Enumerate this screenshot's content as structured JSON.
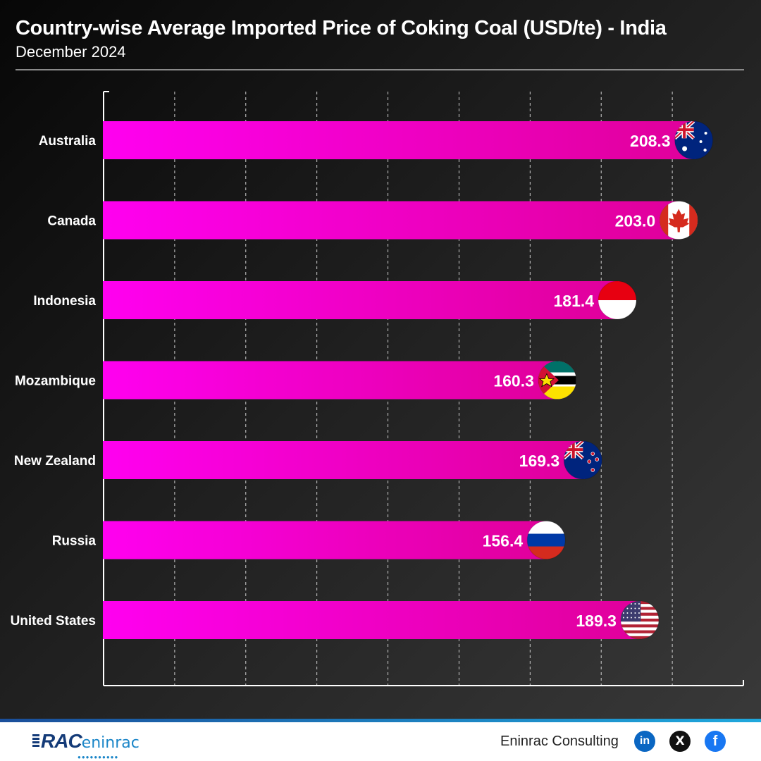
{
  "chart_data": {
    "type": "bar",
    "orientation": "horizontal",
    "title": "Country-wise Average Imported Price of Coking Coal (USD/te) - India",
    "subtitle": "December 2024",
    "categories": [
      "Australia",
      "Canada",
      "Indonesia",
      "Mozambique",
      "New Zealand",
      "Russia",
      "United States"
    ],
    "values": [
      208.3,
      203.0,
      181.4,
      160.3,
      169.3,
      156.4,
      189.3
    ],
    "value_labels": [
      "208.3",
      "203.0",
      "181.4",
      "160.3",
      "169.3",
      "156.4",
      "189.3"
    ],
    "flags": [
      "australia-flag-icon",
      "canada-flag-icon",
      "indonesia-flag-icon",
      "mozambique-flag-icon",
      "new-zealand-flag-icon",
      "russia-flag-icon",
      "united-states-flag-icon"
    ],
    "xlim": [
      0,
      225
    ],
    "xlabel": "",
    "ylabel": "",
    "grid": "vertical dashed",
    "bar_color_start": "#ff00f0",
    "bar_color_end": "#e0009a"
  },
  "footer": {
    "logo_primary": "RAC",
    "logo_secondary": "eninrac",
    "brand": "Eninrac Consulting",
    "social": [
      "in",
      "X",
      "f"
    ]
  }
}
